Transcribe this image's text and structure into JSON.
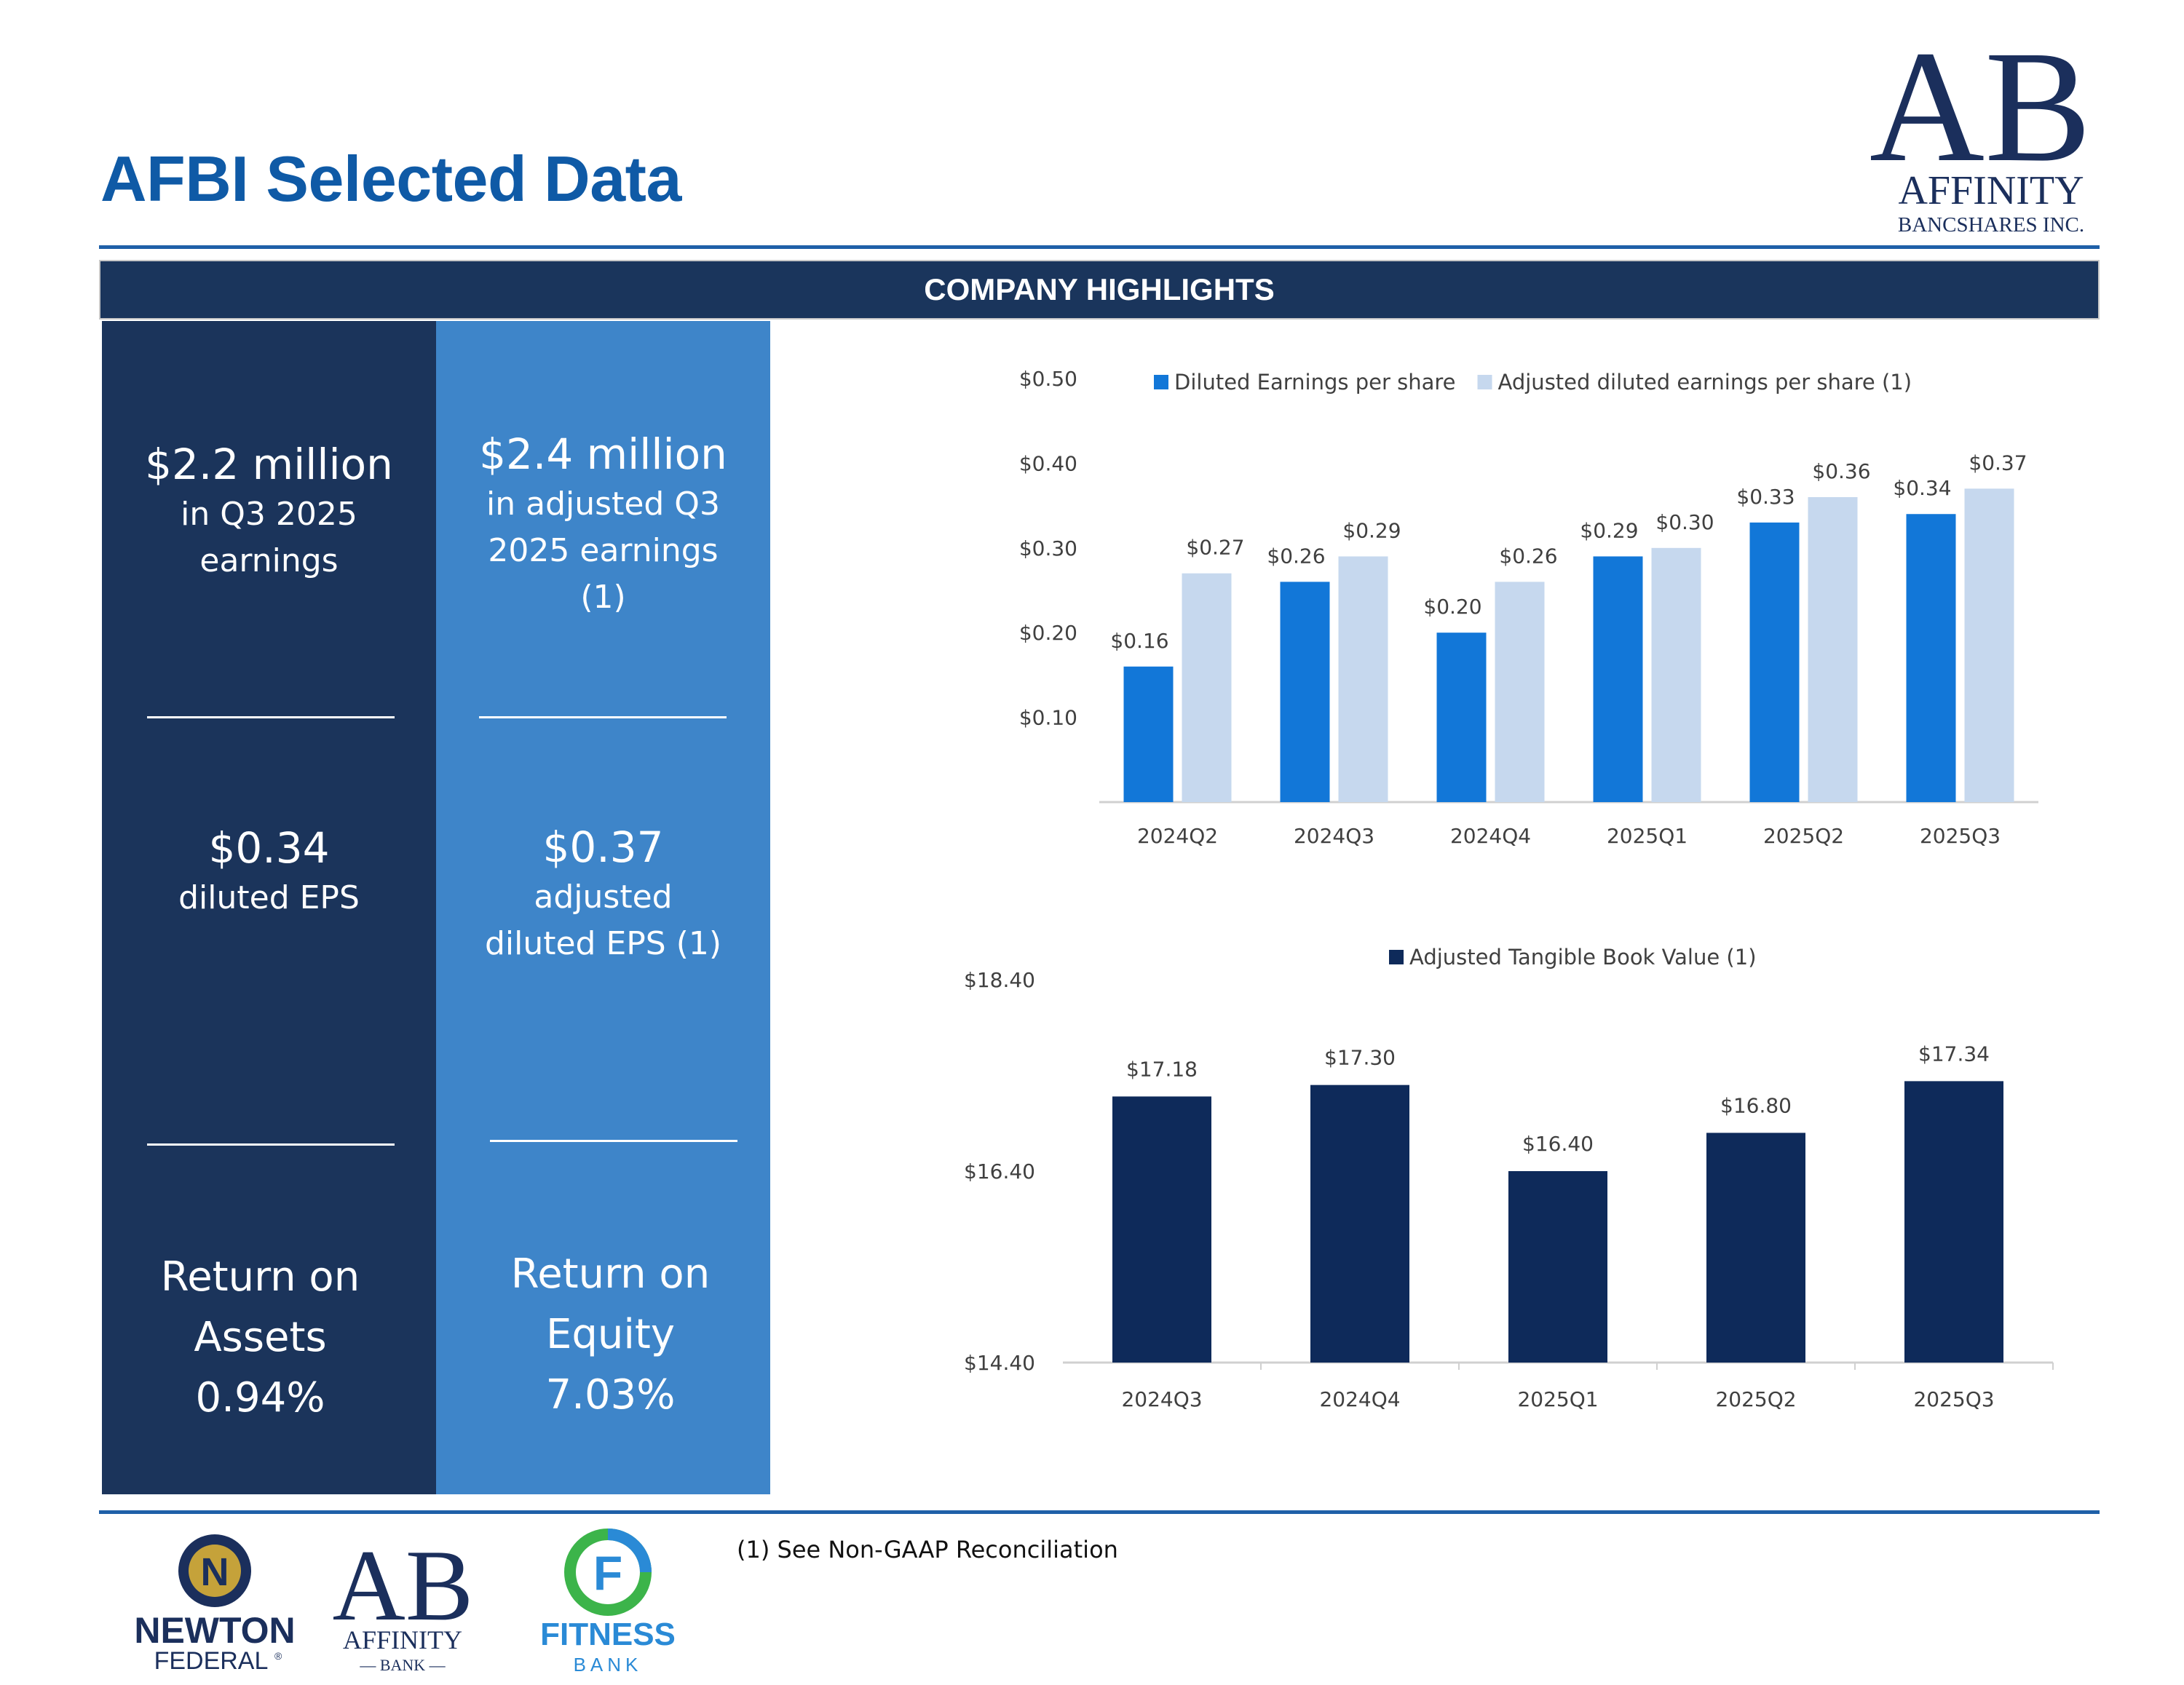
{
  "header": {
    "title": "AFBI Selected Data",
    "logo": {
      "monogram": "AB",
      "line1": "AFFINITY",
      "line2": "BANCSHARES INC."
    }
  },
  "banner": {
    "label": "COMPANY HIGHLIGHTS"
  },
  "kpis": {
    "earnings": {
      "value": "$2.2 million",
      "desc_line1": "in Q3 2025",
      "desc_line2": "earnings"
    },
    "adj_earnings": {
      "value": "$2.4 million",
      "desc_line1": "in adjusted Q3",
      "desc_line2": "2025 earnings",
      "desc_line3": "(1)"
    },
    "eps": {
      "value": "$0.34",
      "desc_line1": "diluted EPS"
    },
    "adj_eps": {
      "value": "$0.37",
      "desc_line1": "adjusted",
      "desc_line2": "diluted EPS (1)"
    },
    "roa": {
      "line1": "Return on",
      "line2": "Assets",
      "value": "0.94%"
    },
    "roe": {
      "line1": "Return on",
      "line2": "Equity",
      "value": "7.03%"
    }
  },
  "chart_data": [
    {
      "type": "bar",
      "title": "",
      "categories": [
        "2024Q2",
        "2024Q3",
        "2024Q4",
        "2025Q1",
        "2025Q2",
        "2025Q3"
      ],
      "series": [
        {
          "name": "Diluted Earnings per share",
          "values": [
            0.16,
            0.26,
            0.2,
            0.29,
            0.33,
            0.34
          ],
          "labels": [
            "$0.16",
            "$0.26",
            "$0.20",
            "$0.29",
            "$0.33",
            "$0.34"
          ],
          "color": "#1277d8"
        },
        {
          "name": "Adjusted diluted earnings per share (1)",
          "values": [
            0.27,
            0.29,
            0.26,
            0.3,
            0.36,
            0.37
          ],
          "labels": [
            "$0.27",
            "$0.29",
            "$0.26",
            "$0.30",
            "$0.36",
            "$0.37"
          ],
          "color": "#c6d8ee"
        }
      ],
      "yticks": [
        "$0.10",
        "$0.20",
        "$0.30",
        "$0.40",
        "$0.50"
      ],
      "ytick_values": [
        0.1,
        0.2,
        0.3,
        0.4,
        0.5
      ],
      "ylim": [
        0,
        0.5
      ],
      "xlabel": "",
      "ylabel": "",
      "legend": "top"
    },
    {
      "type": "bar",
      "title": "",
      "categories": [
        "2024Q3",
        "2024Q4",
        "2025Q1",
        "2025Q2",
        "2025Q3"
      ],
      "series": [
        {
          "name": "Adjusted Tangible Book Value (1)",
          "values": [
            17.18,
            17.3,
            16.4,
            16.8,
            17.34
          ],
          "labels": [
            "$17.18",
            "$17.30",
            "$16.40",
            "$16.80",
            "$17.34"
          ],
          "color": "#0e2a5a"
        }
      ],
      "yticks": [
        "$14.40",
        "$16.40",
        "$18.40"
      ],
      "ytick_values": [
        14.4,
        16.4,
        18.4
      ],
      "ylim": [
        14.4,
        18.4
      ],
      "xlabel": "",
      "ylabel": "",
      "legend": "top"
    }
  ],
  "footnote": "(1) See Non-GAAP Reconciliation",
  "brands": {
    "newton": {
      "mark": "N",
      "line1": "NEWTON",
      "line2": "FEDERAL",
      "reg": "®"
    },
    "affinity_bank": {
      "monogram": "AB",
      "line1": "AFFINITY",
      "line2": "— BANK —"
    },
    "fitness": {
      "mark": "F",
      "line1": "FITNESS",
      "line2": "BANK"
    }
  }
}
